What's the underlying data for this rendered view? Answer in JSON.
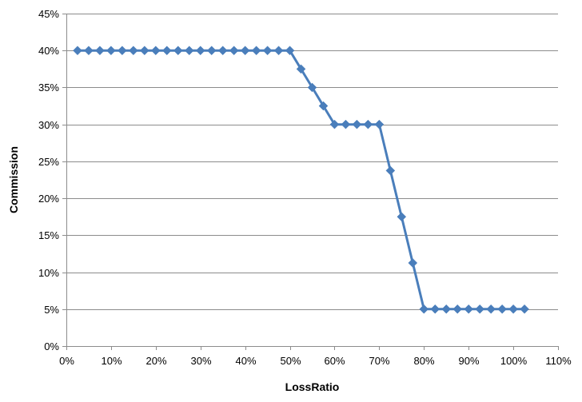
{
  "chart_data": {
    "type": "line",
    "xlabel": "LossRatio",
    "ylabel": "Commission",
    "xlim": [
      0,
      110
    ],
    "ylim": [
      0,
      45
    ],
    "x_ticks": [
      0,
      10,
      20,
      30,
      40,
      50,
      60,
      70,
      80,
      90,
      100,
      110
    ],
    "y_ticks": [
      0,
      5,
      10,
      15,
      20,
      25,
      30,
      35,
      40,
      45
    ],
    "x_tick_labels": [
      "0%",
      "10%",
      "20%",
      "30%",
      "40%",
      "50%",
      "60%",
      "70%",
      "80%",
      "90%",
      "100%",
      "110%"
    ],
    "y_tick_labels": [
      "0%",
      "5%",
      "10%",
      "15%",
      "20%",
      "25%",
      "30%",
      "35%",
      "40%",
      "45%"
    ],
    "grid": "horizontal",
    "legend": "none",
    "marker": "diamond",
    "series_color": "#4a7ebb",
    "series": [
      {
        "x": [
          2.5,
          5,
          7.5,
          10,
          12.5,
          15,
          17.5,
          20,
          22.5,
          25,
          27.5,
          30,
          32.5,
          35,
          37.5,
          40,
          42.5,
          45,
          47.5,
          50,
          52.5,
          55,
          57.5,
          60,
          62.5,
          65,
          67.5,
          70,
          72.5,
          75,
          77.5,
          80,
          82.5,
          85,
          87.5,
          90,
          92.5,
          95,
          97.5,
          100,
          102.5
        ],
        "y": [
          40,
          40,
          40,
          40,
          40,
          40,
          40,
          40,
          40,
          40,
          40,
          40,
          40,
          40,
          40,
          40,
          40,
          40,
          40,
          40,
          37.5,
          35,
          32.5,
          30,
          30,
          30,
          30,
          30,
          23.75,
          17.5,
          11.25,
          5,
          5,
          5,
          5,
          5,
          5,
          5,
          5,
          5,
          5
        ]
      }
    ]
  }
}
